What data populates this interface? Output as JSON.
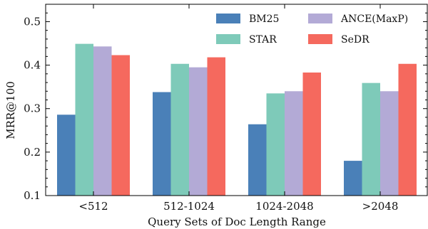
{
  "chart_data": {
    "type": "bar",
    "xlabel": "Query Sets of Doc Length Range",
    "ylabel": "MRR@100",
    "categories": [
      "<512",
      "512-1024",
      "1024-2048",
      ">2048"
    ],
    "ylim": [
      0.1,
      0.54
    ],
    "yticks": [
      0.1,
      0.2,
      0.3,
      0.4,
      0.5
    ],
    "ytick_labels": [
      "0.1",
      "0.2",
      "0.3",
      "0.4",
      "0.5"
    ],
    "grid": false,
    "legend_position": "top-right",
    "series": [
      {
        "name": "BM25",
        "color": "#4a80b8",
        "values": [
          0.286,
          0.338,
          0.264,
          0.18
        ]
      },
      {
        "name": "STAR",
        "color": "#7ecab9",
        "values": [
          0.449,
          0.403,
          0.335,
          0.359
        ]
      },
      {
        "name": "ANCE(MaxP)",
        "color": "#b3aad6",
        "values": [
          0.443,
          0.395,
          0.34,
          0.34
        ]
      },
      {
        "name": "SeDR",
        "color": "#f5695e",
        "values": [
          0.423,
          0.418,
          0.383,
          0.403
        ]
      }
    ]
  }
}
